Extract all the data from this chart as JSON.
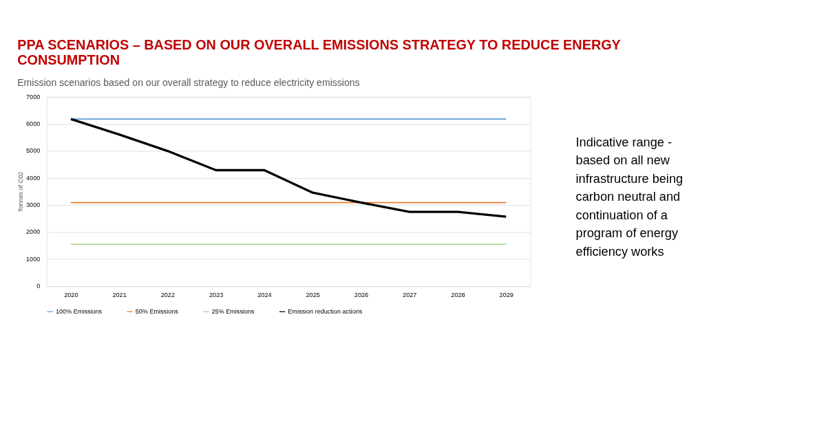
{
  "chart_data": {
    "type": "line",
    "title": "PPA SCENARIOS – BASED ON OUR OVERALL EMISSIONS STRATEGY TO REDUCE ENERGY CONSUMPTION",
    "subtitle": "Emission scenarios based on our overall strategy to reduce electricity emissions",
    "ylabel": "Tonnes of C02",
    "categories": [
      "2020",
      "2021",
      "2022",
      "2023",
      "2024",
      "2025",
      "2026",
      "2027",
      "2028",
      "2029"
    ],
    "series": [
      {
        "name": "100% Emissions",
        "color": "#5b9bd5",
        "values": [
          6180,
          6180,
          6180,
          6180,
          6180,
          6180,
          6180,
          6180,
          6180,
          6180
        ]
      },
      {
        "name": "50% Emissions",
        "color": "#ed7d31",
        "values": [
          3090,
          3090,
          3090,
          3090,
          3090,
          3090,
          3090,
          3090,
          3090,
          3090
        ]
      },
      {
        "name": "25% Emissions",
        "color": "#a9d18e",
        "values": [
          1550,
          1550,
          1550,
          1550,
          1550,
          1550,
          1550,
          1550,
          1550,
          1550
        ]
      },
      {
        "name": "Emission reduction actions",
        "color": "#000000",
        "values": [
          6180,
          5610,
          5000,
          4290,
          4290,
          3460,
          3090,
          2750,
          2750,
          2570
        ]
      }
    ],
    "ylim": [
      0,
      7000
    ],
    "yticks": [
      0,
      1000,
      2000,
      3000,
      4000,
      5000,
      6000,
      7000
    ],
    "grid": "y",
    "legend": "bottom",
    "annotations": [
      "Indicative range - based on all new infrastructure being carbon neutral and continuation of a program of energy efficiency works"
    ]
  }
}
